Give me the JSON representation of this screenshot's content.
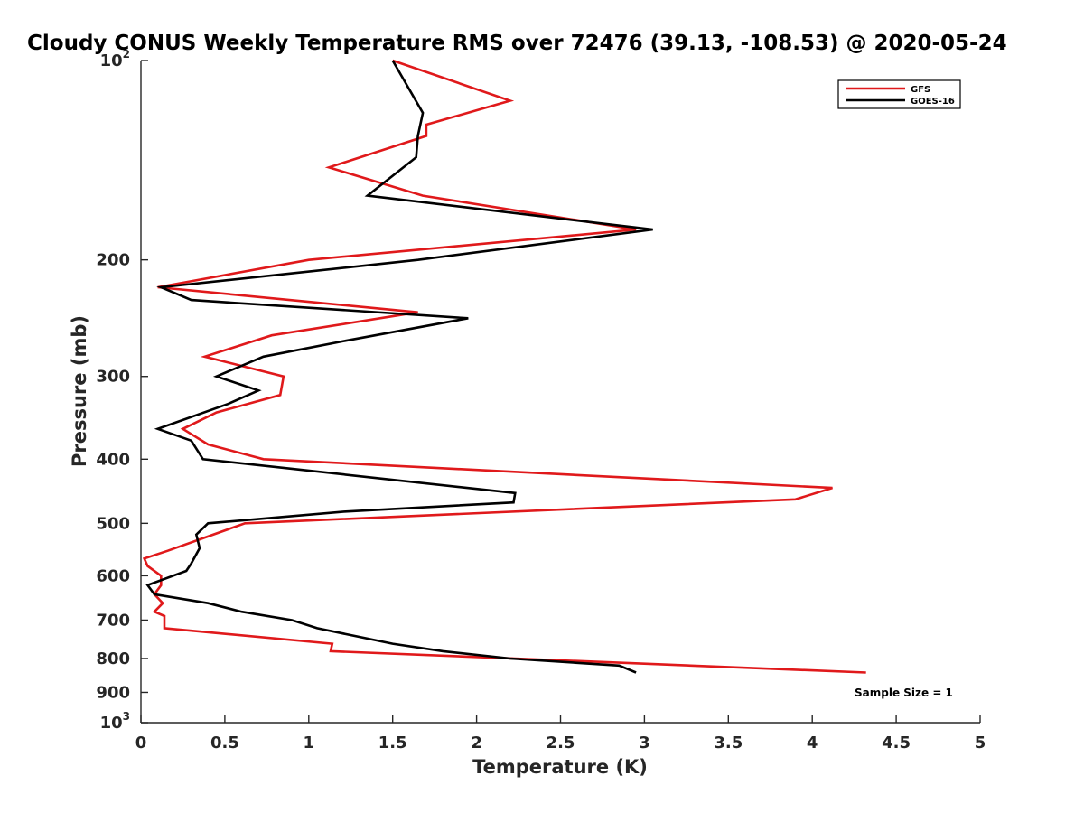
{
  "chart_data": {
    "type": "line",
    "title": "Cloudy CONUS Weekly Temperature RMS over 72476 (39.13, -108.53) @ 2020-05-24",
    "xlabel": "Temperature (K)",
    "ylabel": "Pressure (mb)",
    "xlim": [
      0,
      5
    ],
    "ylim": [
      100,
      1000
    ],
    "y_scale": "log",
    "y_reversed": true,
    "x_ticks": [
      0,
      0.5,
      1,
      1.5,
      2,
      2.5,
      3,
      3.5,
      4,
      4.5,
      5
    ],
    "x_tick_labels": [
      "0",
      "0.5",
      "1",
      "1.5",
      "2",
      "2.5",
      "3",
      "3.5",
      "4",
      "4.5",
      "5"
    ],
    "y_ticks": [
      {
        "value": 100,
        "base": "10",
        "exp": "2"
      },
      {
        "value": 200,
        "label": "200"
      },
      {
        "value": 300,
        "label": "300"
      },
      {
        "value": 400,
        "label": "400"
      },
      {
        "value": 500,
        "label": "500"
      },
      {
        "value": 600,
        "label": "600"
      },
      {
        "value": 700,
        "label": "700"
      },
      {
        "value": 800,
        "label": "800"
      },
      {
        "value": 900,
        "label": "900"
      },
      {
        "value": 1000,
        "base": "10",
        "exp": "3"
      }
    ],
    "grid": false,
    "legend_position": "top-right",
    "annotation": "Sample Size = 1",
    "series": [
      {
        "name": "GFS",
        "color": "#e0191b",
        "points": [
          [
            1.5,
            100
          ],
          [
            2.2,
            115
          ],
          [
            1.7,
            125
          ],
          [
            1.7,
            130
          ],
          [
            1.12,
            145
          ],
          [
            1.68,
            160
          ],
          [
            2.95,
            180
          ],
          [
            1.0,
            200
          ],
          [
            0.1,
            220
          ],
          [
            1.65,
            240
          ],
          [
            0.78,
            260
          ],
          [
            0.38,
            280
          ],
          [
            0.85,
            300
          ],
          [
            0.83,
            320
          ],
          [
            0.45,
            340
          ],
          [
            0.25,
            360
          ],
          [
            0.4,
            380
          ],
          [
            0.73,
            400
          ],
          [
            4.12,
            442
          ],
          [
            3.9,
            460
          ],
          [
            0.62,
            500
          ],
          [
            0.16,
            550
          ],
          [
            0.02,
            565
          ],
          [
            0.04,
            580
          ],
          [
            0.12,
            600
          ],
          [
            0.12,
            620
          ],
          [
            0.08,
            640
          ],
          [
            0.13,
            660
          ],
          [
            0.08,
            680
          ],
          [
            0.14,
            690
          ],
          [
            0.14,
            720
          ],
          [
            1.14,
            760
          ],
          [
            1.13,
            780
          ],
          [
            4.32,
            840
          ]
        ]
      },
      {
        "name": "GOES-16",
        "color": "#000000",
        "points": [
          [
            1.5,
            100
          ],
          [
            1.68,
            120
          ],
          [
            1.65,
            130
          ],
          [
            1.64,
            140
          ],
          [
            1.35,
            160
          ],
          [
            3.05,
            180
          ],
          [
            1.65,
            200
          ],
          [
            0.12,
            220
          ],
          [
            0.3,
            230
          ],
          [
            1.95,
            245
          ],
          [
            1.22,
            265
          ],
          [
            0.73,
            280
          ],
          [
            0.45,
            300
          ],
          [
            0.7,
            315
          ],
          [
            0.52,
            330
          ],
          [
            0.1,
            360
          ],
          [
            0.3,
            375
          ],
          [
            0.37,
            400
          ],
          [
            2.23,
            450
          ],
          [
            2.22,
            465
          ],
          [
            1.22,
            480
          ],
          [
            0.4,
            500
          ],
          [
            0.33,
            520
          ],
          [
            0.35,
            545
          ],
          [
            0.3,
            575
          ],
          [
            0.27,
            590
          ],
          [
            0.04,
            620
          ],
          [
            0.08,
            640
          ],
          [
            0.4,
            660
          ],
          [
            0.6,
            680
          ],
          [
            0.9,
            700
          ],
          [
            1.05,
            720
          ],
          [
            1.5,
            760
          ],
          [
            1.8,
            780
          ],
          [
            2.2,
            800
          ],
          [
            2.85,
            820
          ],
          [
            2.95,
            840
          ]
        ]
      }
    ]
  }
}
